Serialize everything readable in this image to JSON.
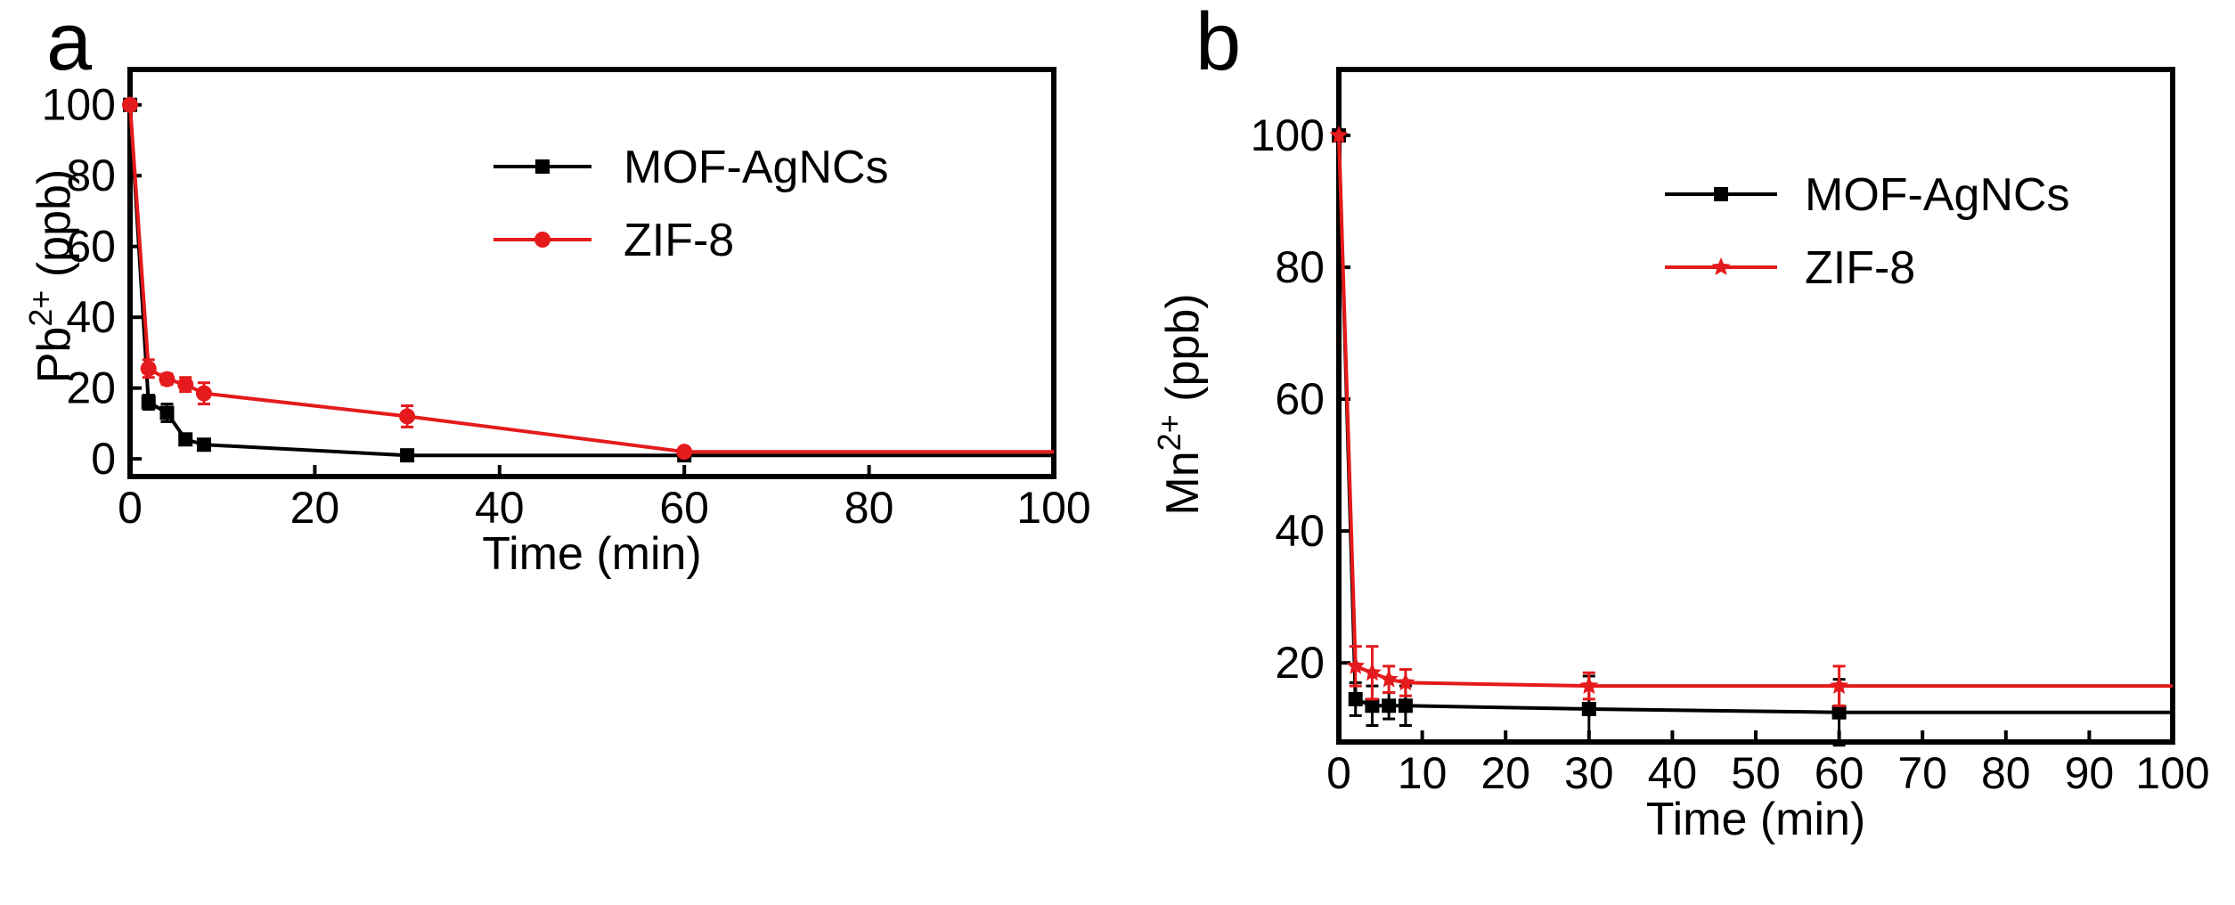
{
  "chart_data": [
    {
      "type": "line",
      "panel_label": "a",
      "xlabel": "Time (min)",
      "ylabel": {
        "base": "Pb",
        "sup": "2+",
        "unit": " (ppb)"
      },
      "xlim": [
        0,
        100
      ],
      "ylim": [
        -5,
        110
      ],
      "xticks": [
        0,
        20,
        40,
        60,
        80,
        100
      ],
      "yticks": [
        0,
        20,
        40,
        60,
        80,
        100
      ],
      "legend_position": "top-right",
      "series": [
        {
          "name": "MOF-AgNCs",
          "color": "#000000",
          "marker": "square",
          "x": [
            0,
            2,
            4,
            6,
            8,
            30,
            60,
            100
          ],
          "y": [
            100,
            16,
            13,
            5.5,
            4,
            1,
            1,
            1
          ],
          "err": [
            0,
            2,
            2.5,
            1,
            0.5,
            0,
            0,
            0
          ]
        },
        {
          "name": "ZIF-8",
          "color": "#e41a1c",
          "marker": "circle",
          "x": [
            0,
            2,
            4,
            6,
            8,
            30,
            60,
            100
          ],
          "y": [
            100,
            25.5,
            22.5,
            21,
            18.5,
            12,
            2,
            2
          ],
          "err": [
            0,
            2.5,
            1.5,
            2,
            3,
            3,
            0,
            0
          ]
        }
      ]
    },
    {
      "type": "line",
      "panel_label": "b",
      "xlabel": "Time (min)",
      "ylabel": {
        "base": "Mn",
        "sup": "2+",
        "unit": " (ppb)"
      },
      "xlim": [
        0,
        100
      ],
      "ylim": [
        8,
        110
      ],
      "xticks": [
        0,
        10,
        20,
        30,
        40,
        50,
        60,
        70,
        80,
        90,
        100
      ],
      "yticks": [
        20,
        40,
        60,
        80,
        100
      ],
      "legend_position": "top-right",
      "series": [
        {
          "name": "MOF-AgNCs",
          "color": "#000000",
          "marker": "square",
          "x": [
            0,
            2,
            4,
            6,
            8,
            30,
            60,
            100
          ],
          "y": [
            100,
            14.5,
            13.5,
            13.5,
            13.5,
            13,
            12.5,
            12.5
          ],
          "err": [
            0,
            2.5,
            3,
            2,
            3,
            5,
            5,
            0
          ]
        },
        {
          "name": "ZIF-8",
          "color": "#e41a1c",
          "marker": "star",
          "x": [
            0,
            2,
            4,
            6,
            8,
            30,
            60,
            100
          ],
          "y": [
            100,
            19.5,
            18.5,
            17.5,
            17,
            16.5,
            16.5,
            16.5
          ],
          "err": [
            0,
            3,
            4,
            2,
            2,
            2,
            3,
            0
          ]
        }
      ]
    }
  ]
}
